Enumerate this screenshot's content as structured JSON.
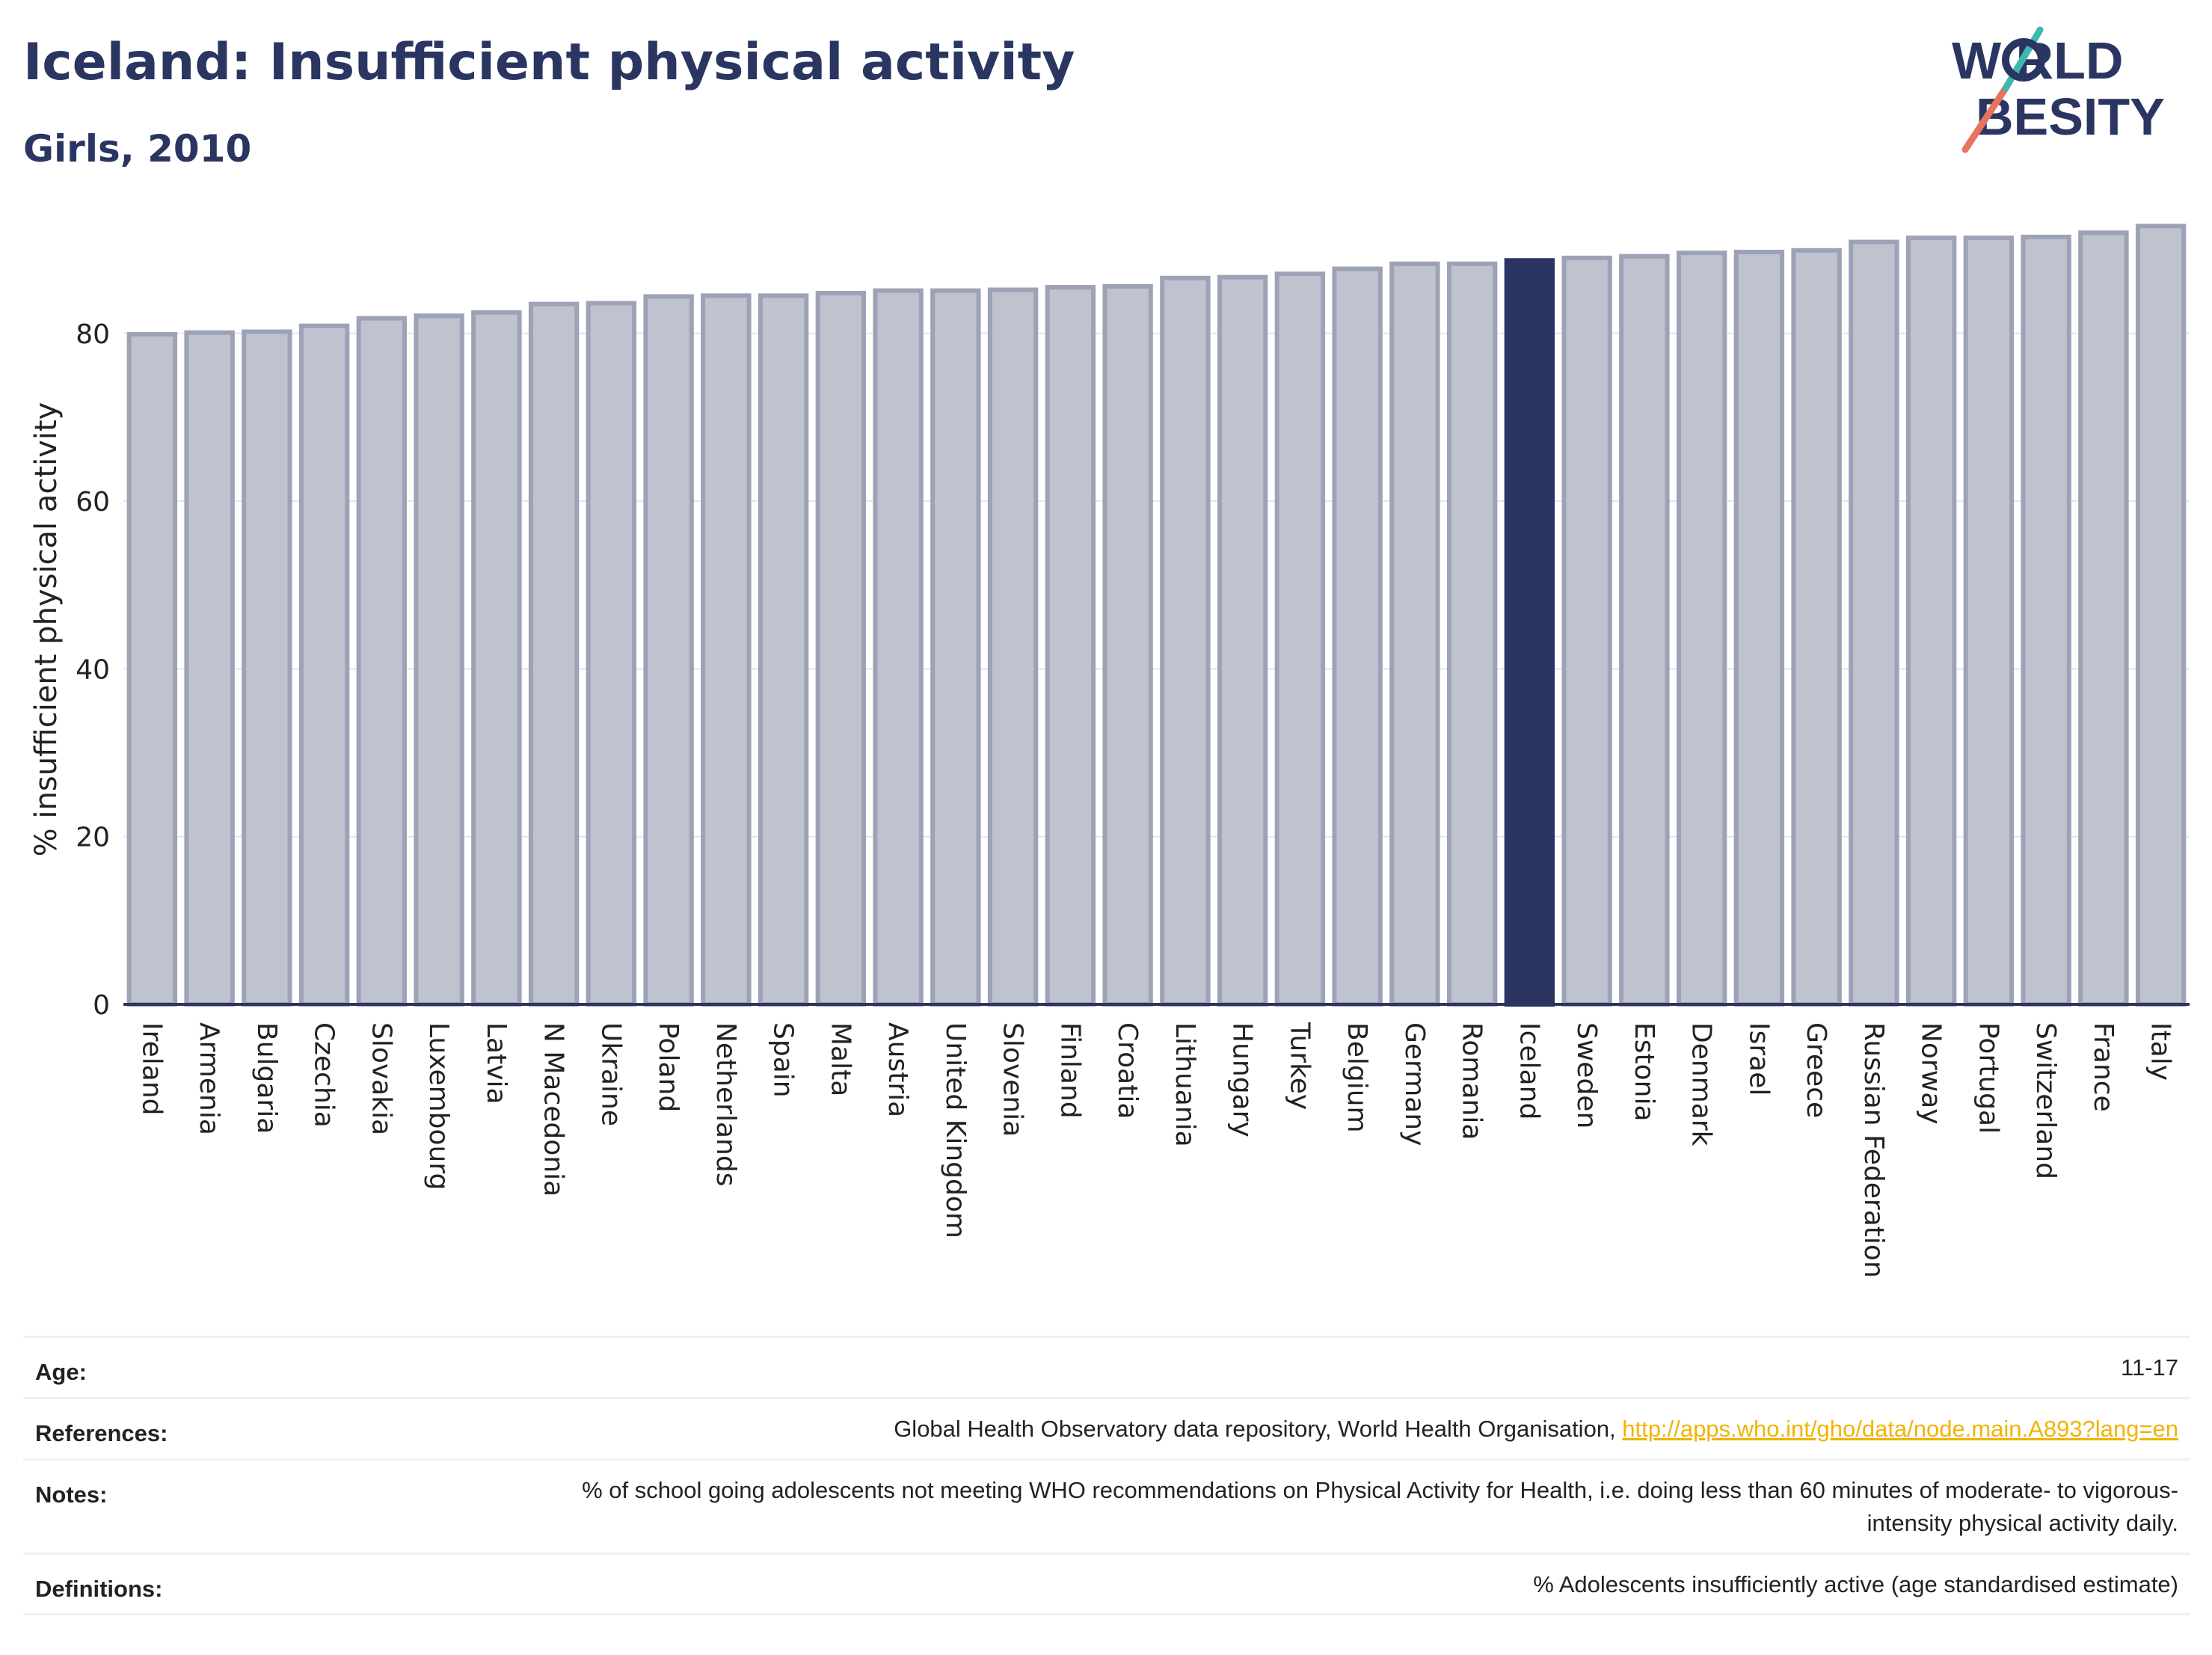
{
  "header": {
    "title": "Iceland: Insufficient physical activity",
    "subtitle": "Girls, 2010"
  },
  "logo": {
    "line1": "W  RLD",
    "line2": "BESITY",
    "text": "WORLD OBESITY"
  },
  "chart_data": {
    "type": "bar",
    "ylabel": "% insufficient physical activity",
    "xlabel": "",
    "ylim": [
      0,
      93
    ],
    "yticks": [
      0,
      20,
      40,
      60,
      80
    ],
    "grid": true,
    "highlight": "Iceland",
    "colors": {
      "bar": "#bfc2cf",
      "bar_border": "#9da2b6",
      "highlight": "#2b3561",
      "axis": "#2b3561",
      "grid": "#e3e5ec"
    },
    "categories": [
      "Ireland",
      "Armenia",
      "Bulgaria",
      "Czechia",
      "Slovakia",
      "Luxembourg",
      "Latvia",
      "N Macedonia",
      "Ukraine",
      "Poland",
      "Netherlands",
      "Spain",
      "Malta",
      "Austria",
      "United Kingdom",
      "Slovenia",
      "Finland",
      "Croatia",
      "Lithuania",
      "Hungary",
      "Turkey",
      "Belgium",
      "Germany",
      "Romania",
      "Iceland",
      "Sweden",
      "Estonia",
      "Denmark",
      "Israel",
      "Greece",
      "Russian Federation",
      "Norway",
      "Portugal",
      "Switzerland",
      "France",
      "Italy"
    ],
    "values": [
      79.9,
      80.1,
      80.2,
      80.9,
      81.8,
      82.1,
      82.5,
      83.5,
      83.6,
      84.4,
      84.5,
      84.5,
      84.8,
      85.1,
      85.1,
      85.2,
      85.5,
      85.6,
      86.6,
      86.7,
      87.1,
      87.7,
      88.3,
      88.3,
      88.7,
      89.0,
      89.2,
      89.6,
      89.7,
      89.9,
      90.9,
      91.4,
      91.4,
      91.5,
      92.0,
      92.8
    ]
  },
  "info": {
    "age_label": "Age:",
    "age_value": "11-17",
    "references_label": "References:",
    "references_text": "Global Health Observatory data repository, World Health Organisation, ",
    "references_link": "http://apps.who.int/gho/data/node.main.A893?lang=en",
    "notes_label": "Notes:",
    "notes_value": "% of school going adolescents not meeting WHO recommendations on Physical Activity for Health, i.e. doing less than 60 minutes of moderate- to vigorous-intensity physical activity daily.",
    "definitions_label": "Definitions:",
    "definitions_value": "% Adolescents insufficiently active (age standardised estimate)"
  }
}
